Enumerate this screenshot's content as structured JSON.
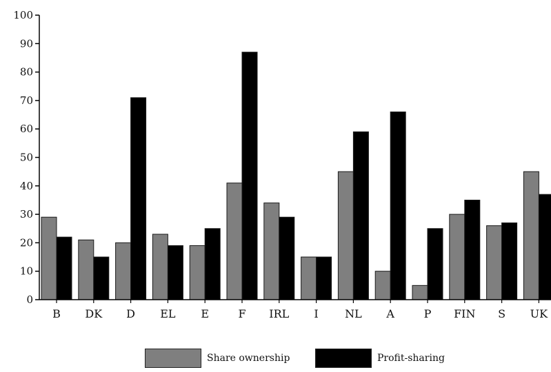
{
  "chart_data": {
    "type": "bar",
    "categories": [
      "B",
      "DK",
      "D",
      "EL",
      "E",
      "F",
      "IRL",
      "I",
      "NL",
      "A",
      "P",
      "FIN",
      "S",
      "UK"
    ],
    "series": [
      {
        "name": "Share ownership",
        "color": "#7f7f7f",
        "values": [
          29,
          21,
          20,
          23,
          19,
          41,
          34,
          15,
          45,
          10,
          5,
          30,
          26,
          45
        ]
      },
      {
        "name": "Profit-sharing",
        "color": "#000000",
        "values": [
          22,
          15,
          71,
          19,
          25,
          87,
          29,
          15,
          59,
          66,
          25,
          35,
          27,
          37
        ]
      }
    ],
    "yticks": [
      "0",
      "10",
      "20",
      "30",
      "40",
      "50",
      "60",
      "70",
      "80",
      "90",
      "100"
    ],
    "ylim": [
      0,
      100
    ],
    "legend_position": "bottom",
    "grid": false
  }
}
